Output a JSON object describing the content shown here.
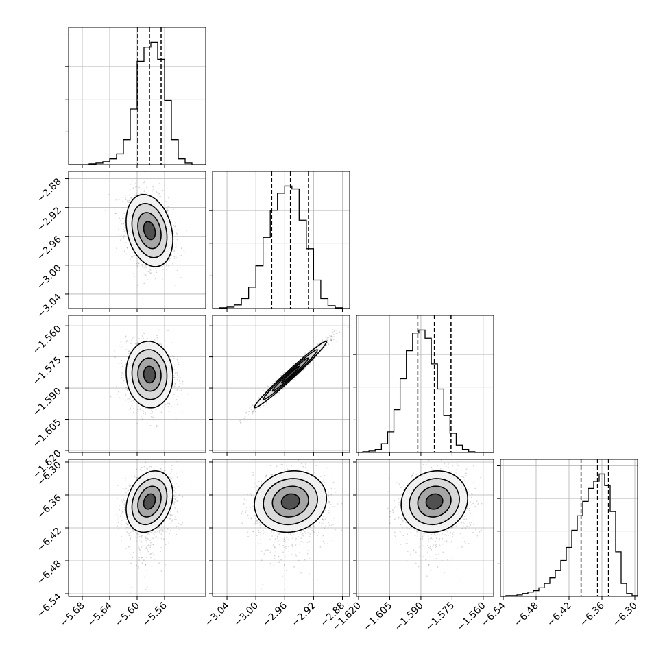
{
  "chart_data": {
    "type": "corner",
    "grid": true,
    "parameters": [
      {
        "range": [
          -5.7,
          -5.5
        ],
        "ticks": [
          -5.68,
          -5.64,
          -5.6,
          -5.56
        ],
        "tick_labels": [
          "−5.68",
          "−5.64",
          "−5.60",
          "−5.56"
        ],
        "quantiles": [
          -5.599,
          -5.582,
          -5.565
        ],
        "hist_bins": [
          -5.7,
          -5.69,
          -5.68,
          -5.67,
          -5.66,
          -5.65,
          -5.64,
          -5.63,
          -5.62,
          -5.61,
          -5.6,
          -5.59,
          -5.58,
          -5.57,
          -5.56,
          -5.55,
          -5.54,
          -5.53,
          -5.52,
          -5.51,
          -5.5
        ],
        "hist_counts": [
          0,
          0,
          0,
          1,
          2,
          4,
          8,
          15,
          35,
          78,
          145,
          165,
          172,
          148,
          90,
          35,
          8,
          2,
          0,
          0
        ],
        "mean": -5.582,
        "sigma": 0.017
      },
      {
        "range": [
          -3.06,
          -2.87
        ],
        "ticks": [
          -3.04,
          -3.0,
          -2.96,
          -2.92,
          -2.88
        ],
        "tick_labels": [
          "−3.04",
          "−3.00",
          "−2.96",
          "−2.92",
          "−2.88"
        ],
        "quantiles": [
          -2.978,
          -2.952,
          -2.927
        ],
        "hist_bins": [
          -3.06,
          -3.05,
          -3.04,
          -3.03,
          -3.02,
          -3.01,
          -3.0,
          -2.99,
          -2.98,
          -2.97,
          -2.96,
          -2.95,
          -2.94,
          -2.93,
          -2.92,
          -2.91,
          -2.9,
          -2.89,
          -2.88,
          -2.87
        ],
        "hist_counts": [
          0,
          1,
          2,
          5,
          14,
          30,
          60,
          100,
          138,
          162,
          172,
          168,
          124,
          84,
          40,
          14,
          4,
          1,
          0
        ],
        "mean": -2.952,
        "sigma": 0.025
      },
      {
        "range": [
          -1.621,
          -1.555
        ],
        "ticks": [
          -1.62,
          -1.605,
          -1.59,
          -1.575,
          -1.56
        ],
        "tick_labels": [
          "−1.620",
          "−1.605",
          "−1.590",
          "−1.575",
          "−1.560"
        ],
        "quantiles": [
          -1.5915,
          -1.5835,
          -1.5755
        ],
        "hist_bins": [
          -1.621,
          -1.618,
          -1.615,
          -1.612,
          -1.609,
          -1.606,
          -1.603,
          -1.6,
          -1.597,
          -1.594,
          -1.591,
          -1.588,
          -1.585,
          -1.582,
          -1.579,
          -1.576,
          -1.573,
          -1.57,
          -1.567,
          -1.564,
          -1.561,
          -1.558,
          -1.555
        ],
        "hist_counts": [
          0,
          1,
          2,
          4,
          12,
          28,
          58,
          100,
          138,
          162,
          166,
          155,
          120,
          86,
          50,
          26,
          10,
          4,
          1,
          0,
          0,
          0
        ],
        "mean": -1.5835,
        "sigma": 0.008
      },
      {
        "range": [
          -6.545,
          -6.295
        ],
        "ticks": [
          -6.54,
          -6.48,
          -6.42,
          -6.36,
          -6.3
        ],
        "tick_labels": [
          "−6.54",
          "−6.48",
          "−6.42",
          "−6.36",
          "−6.30"
        ],
        "quantiles": [
          -6.398,
          -6.368,
          -6.348
        ],
        "hist_bins": [
          -6.545,
          -6.535,
          -6.525,
          -6.515,
          -6.505,
          -6.495,
          -6.485,
          -6.475,
          -6.465,
          -6.455,
          -6.445,
          -6.435,
          -6.425,
          -6.415,
          -6.405,
          -6.395,
          -6.385,
          -6.375,
          -6.365,
          -6.355,
          -6.345,
          -6.335,
          -6.325,
          -6.315,
          -6.305,
          -6.295
        ],
        "hist_counts": [
          0,
          1,
          1,
          2,
          4,
          6,
          8,
          12,
          18,
          26,
          36,
          50,
          68,
          92,
          112,
          132,
          150,
          160,
          170,
          154,
          118,
          62,
          18,
          4,
          1
        ],
        "mean": -6.372,
        "sigma": 0.028
      }
    ],
    "correlations": [
      {
        "i": 1,
        "j": 0,
        "rho": -0.25
      },
      {
        "i": 2,
        "j": 0,
        "rho": -0.05
      },
      {
        "i": 2,
        "j": 1,
        "rho": 0.985
      },
      {
        "i": 3,
        "j": 0,
        "rho": 0.25
      },
      {
        "i": 3,
        "j": 1,
        "rho": 0.1
      },
      {
        "i": 3,
        "j": 2,
        "rho": 0.1
      }
    ],
    "contour_levels_sigma": [
      0.5,
      1.0,
      1.5,
      2.0
    ]
  }
}
